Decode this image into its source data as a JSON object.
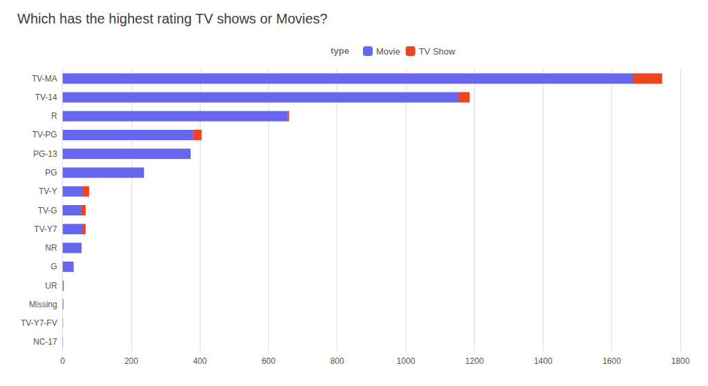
{
  "chart_data": {
    "type": "bar",
    "orientation": "horizontal",
    "stacked": true,
    "title": "Which has the highest rating TV shows or Movies?",
    "legend_title": "type",
    "legend": "top",
    "categories": [
      "TV-MA",
      "TV-14",
      "R",
      "TV-PG",
      "PG-13",
      "PG",
      "TV-Y",
      "TV-G",
      "TV-Y7",
      "NR",
      "G",
      "UR",
      "Missing",
      "TV-Y7-FV",
      "NC-17"
    ],
    "series": [
      {
        "name": "Movie",
        "color": "#6666ee",
        "values": [
          1661,
          1153,
          656,
          381,
          373,
          237,
          57,
          55,
          57,
          55,
          32,
          3,
          2,
          1,
          1
        ]
      },
      {
        "name": "TV Show",
        "color": "#ee4422",
        "values": [
          86,
          33,
          4,
          24,
          0,
          0,
          20,
          12,
          10,
          0,
          0,
          0,
          0,
          0,
          0
        ]
      }
    ],
    "xlim": [
      0,
      1800
    ],
    "xticks": [
      0,
      200,
      400,
      600,
      800,
      1000,
      1200,
      1400,
      1600,
      1800
    ],
    "grid": true
  }
}
